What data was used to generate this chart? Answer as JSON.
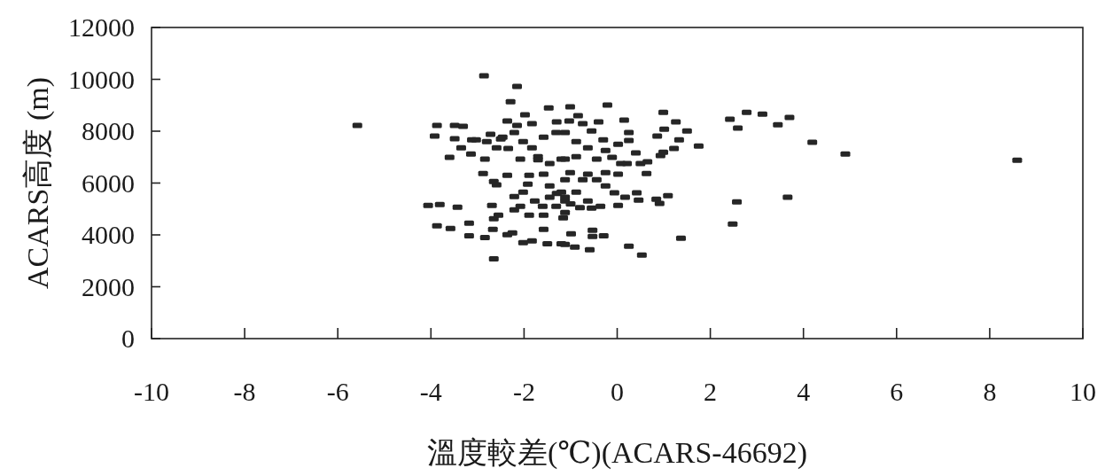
{
  "chart_data": {
    "type": "scatter",
    "xlabel": "溫度較差(℃)(ACARS-46692)",
    "ylabel": "ACARS高度 (m)",
    "xlim": [
      -10,
      10
    ],
    "xticks": [
      -10,
      -8,
      -6,
      -4,
      -2,
      0,
      2,
      4,
      6,
      8,
      10
    ],
    "ylim": [
      0,
      12000
    ],
    "yticks": [
      0,
      2000,
      4000,
      6000,
      8000,
      10000,
      12000
    ],
    "marker": "square",
    "series": [
      {
        "color": "#262626",
        "x": [
          -5.58,
          2.42,
          2.78,
          3.12,
          2.59,
          3.45,
          3.7,
          4.19,
          4.9,
          8.59,
          2.57,
          3.66,
          2.48,
          -2.86,
          -2.15,
          -2.29,
          -1.47,
          -3.87,
          -3.92,
          -3.49,
          -3.31,
          -3.49,
          -3.35,
          -3.12,
          -3.6,
          -3.14,
          -2.84,
          -2.88,
          -2.36,
          -2.65,
          -2.59,
          -4.06,
          -3.81,
          -3.43,
          -2.69,
          -3.87,
          -3.58,
          -3.18,
          -3.18,
          -2.84,
          -2.67,
          -2.65,
          -2.55,
          -2.36,
          -2.25,
          -2.65,
          -2.02,
          -1.83,
          -1.5,
          -1.58,
          -2.21,
          -2.02,
          -1.92,
          -2.21,
          -1.58,
          -1.31,
          -2.36,
          -2.15,
          -1.98,
          -1.83,
          -1.3,
          -3.03,
          -2.72,
          -2.46,
          -2.21,
          -2.59,
          -2.34,
          -2.08,
          -1.83,
          -1.7,
          -2.02,
          -1.58,
          -1.31,
          -1.45,
          -1.2,
          -1.58,
          -1.89,
          -1.45,
          -1.2,
          -1.12,
          -1.77,
          -2.08,
          -1.45,
          -1.12,
          -1.89,
          -1.12,
          -1.2,
          -1.01,
          -0.21,
          -0.84,
          -1.03,
          -0.74,
          -0.4,
          0.15,
          0.99,
          1.26,
          1.5,
          1.01,
          0.86,
          1.33,
          1.75,
          1.22,
          0.25,
          0.25,
          0.02,
          0.4,
          0.99,
          0.93,
          0.65,
          0.5,
          0.21,
          0.08,
          0.63,
          -0.3,
          -0.55,
          -1.12,
          -0.88,
          -0.63,
          -0.25,
          -0.11,
          -0.44,
          -0.88,
          -1.12,
          -1.01,
          -0.63,
          -0.25,
          0.02,
          -0.44,
          -0.74,
          -0.25,
          -0.06,
          0.42,
          0.17,
          0.46,
          0.84,
          1.09,
          0.91,
          0.02,
          -0.36,
          -0.63,
          -0.88,
          -1.12,
          -0.55,
          -1.16,
          -0.99,
          -0.53,
          -0.53,
          -0.29,
          -1.12,
          -0.91,
          -0.59,
          0.25,
          0.53,
          1.37,
          -2.5,
          -2.8,
          -1.6,
          -1.0,
          -0.8,
          -1.3,
          -1.7
        ],
        "values": [
          8220,
          8460,
          8730,
          8660,
          8120,
          8250,
          8530,
          7570,
          7120,
          6880,
          5270,
          5450,
          4420,
          10140,
          9730,
          9140,
          8900,
          8220,
          7810,
          8220,
          8190,
          7710,
          7360,
          7670,
          6990,
          7120,
          6920,
          6370,
          6300,
          6060,
          5930,
          5140,
          5170,
          5070,
          5140,
          4350,
          4250,
          4450,
          3970,
          3900,
          4210,
          4620,
          4760,
          4010,
          4080,
          3080,
          3700,
          3770,
          3660,
          4210,
          5480,
          5650,
          5960,
          4970,
          4760,
          5100,
          8390,
          8220,
          8630,
          8290,
          8360,
          7670,
          7880,
          7770,
          7950,
          7360,
          7330,
          6920,
          7360,
          7020,
          7600,
          7770,
          7950,
          6750,
          6920,
          6340,
          6300,
          5890,
          5650,
          6130,
          5310,
          5100,
          5450,
          5310,
          4760,
          4860,
          3660,
          8940,
          9010,
          8600,
          8390,
          8290,
          8360,
          8430,
          8730,
          8360,
          8010,
          8080,
          7810,
          7670,
          7430,
          7330,
          7950,
          7640,
          7500,
          7160,
          7190,
          7060,
          6820,
          6750,
          6750,
          6750,
          6370,
          7670,
          8010,
          7950,
          7600,
          7360,
          7260,
          6990,
          6920,
          7020,
          6920,
          6400,
          6340,
          6400,
          6340,
          6130,
          6130,
          5890,
          5620,
          5620,
          5450,
          5340,
          5380,
          5510,
          5210,
          5140,
          5100,
          5310,
          5650,
          5450,
          5030,
          4660,
          4040,
          4180,
          3940,
          3970,
          3630,
          3530,
          3430,
          3560,
          3220,
          3870,
          7700,
          7600,
          5100,
          5200,
          5050,
          5600,
          6900
        ]
      }
    ]
  }
}
